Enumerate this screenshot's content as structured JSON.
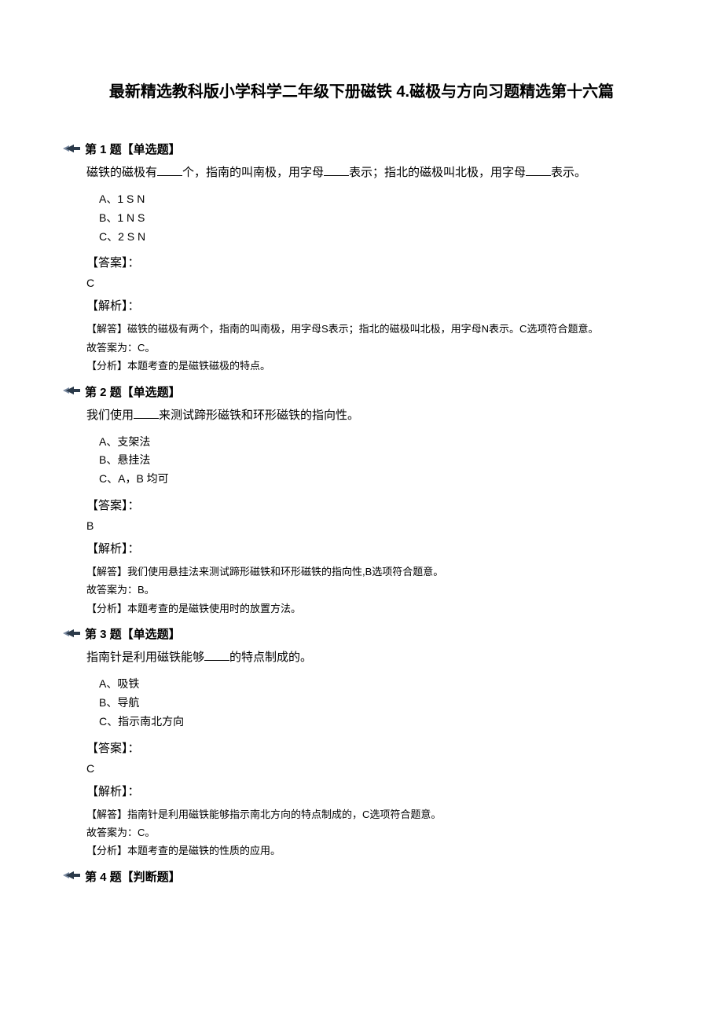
{
  "title": "最新精选教科版小学科学二年级下册磁铁 4.磁极与方向习题精选第十六篇",
  "questions": [
    {
      "header": "第 1 题【单选题】",
      "prompt_parts": [
        "磁铁的磁极有",
        "个，指南的叫南极，用字母",
        "表示；指北的磁极叫北极，用字母",
        "表示。"
      ],
      "options": [
        "A、1 S N",
        "B、1 N S",
        "C、2 S N"
      ],
      "answer_label": "【答案】：",
      "answer": "C",
      "explain_label": "【解析】：",
      "explain_lines": [
        "【解答】磁铁的磁极有两个，指南的叫南极，用字母S表示；指北的磁极叫北极，用字母N表示。C选项符合题意。",
        "故答案为：C。",
        "【分析】本题考查的是磁铁磁极的特点。"
      ]
    },
    {
      "header": "第 2 题【单选题】",
      "prompt_parts": [
        "我们使用",
        "来测试蹄形磁铁和环形磁铁的指向性。"
      ],
      "options": [
        "A、支架法",
        "B、悬挂法",
        "C、A，B 均可"
      ],
      "answer_label": "【答案】：",
      "answer": "B",
      "explain_label": "【解析】：",
      "explain_lines": [
        "【解答】我们使用悬挂法来测试蹄形磁铁和环形磁铁的指向性,B选项符合题意。",
        "故答案为：B。",
        "【分析】本题考查的是磁铁使用时的放置方法。"
      ]
    },
    {
      "header": "第 3 题【单选题】",
      "prompt_parts": [
        "指南针是利用磁铁能够",
        "的特点制成的。"
      ],
      "options": [
        "A、吸铁",
        "B、导航",
        "C、指示南北方向"
      ],
      "answer_label": "【答案】：",
      "answer": "C",
      "explain_label": "【解析】：",
      "explain_lines": [
        "【解答】指南针是利用磁铁能够指示南北方向的特点制成的，C选项符合题意。",
        "故答案为：C。",
        "【分析】本题考查的是磁铁的性质的应用。"
      ]
    },
    {
      "header": "第 4 题【判断题】",
      "prompt_parts": [],
      "options": [],
      "answer_label": "",
      "answer": "",
      "explain_label": "",
      "explain_lines": []
    }
  ],
  "colors": {
    "text": "#000000",
    "bg": "#ffffff",
    "arrow_dark": "#2b3a4a",
    "arrow_light": "#7a8aa0"
  }
}
